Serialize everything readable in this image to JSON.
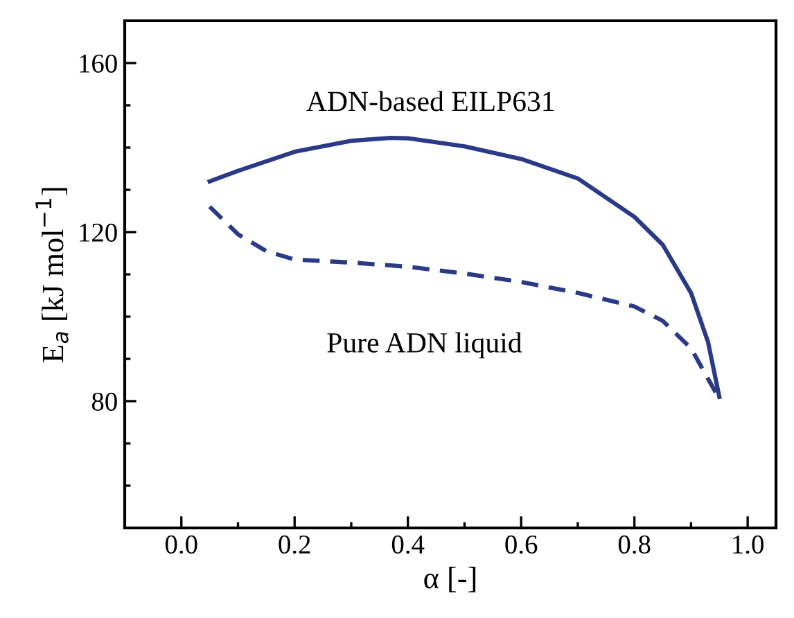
{
  "chart_data": {
    "type": "line",
    "xlabel": "α [-]",
    "ylabel": "E$_{a}$ [kJ mol$^{−1}$]",
    "xlim": [
      -0.1,
      1.05
    ],
    "ylim": [
      50,
      170
    ],
    "xticks": [
      {
        "value": 0,
        "label": "0.0"
      },
      0.2,
      0.4,
      0.6,
      0.8,
      {
        "value": 1,
        "label": "1.0"
      }
    ],
    "yticks": [
      80,
      120,
      160
    ],
    "grid": false,
    "marker": "none",
    "series": [
      {
        "name": "ADN-based EILP631",
        "color": "#2b3a87",
        "line_style": "solid",
        "x": [
          0.05,
          0.1,
          0.2,
          0.3,
          0.37,
          0.4,
          0.5,
          0.6,
          0.7,
          0.8,
          0.85,
          0.9,
          0.93,
          0.95
        ],
        "values": [
          132,
          134.5,
          139,
          141.6,
          142.3,
          142.2,
          140.3,
          137.3,
          132.7,
          123.6,
          117,
          105.6,
          94,
          81
        ]
      },
      {
        "name": "Pure ADN liquid",
        "color": "#2b3a87",
        "line_style": "dashed",
        "x": [
          0.05,
          0.1,
          0.15,
          0.2,
          0.3,
          0.4,
          0.5,
          0.6,
          0.7,
          0.8,
          0.85,
          0.9,
          0.95
        ],
        "values": [
          126,
          119.5,
          115.5,
          113.5,
          112.8,
          111.8,
          110.2,
          108.2,
          105.6,
          102.4,
          99,
          92.5,
          80.5
        ]
      }
    ]
  }
}
